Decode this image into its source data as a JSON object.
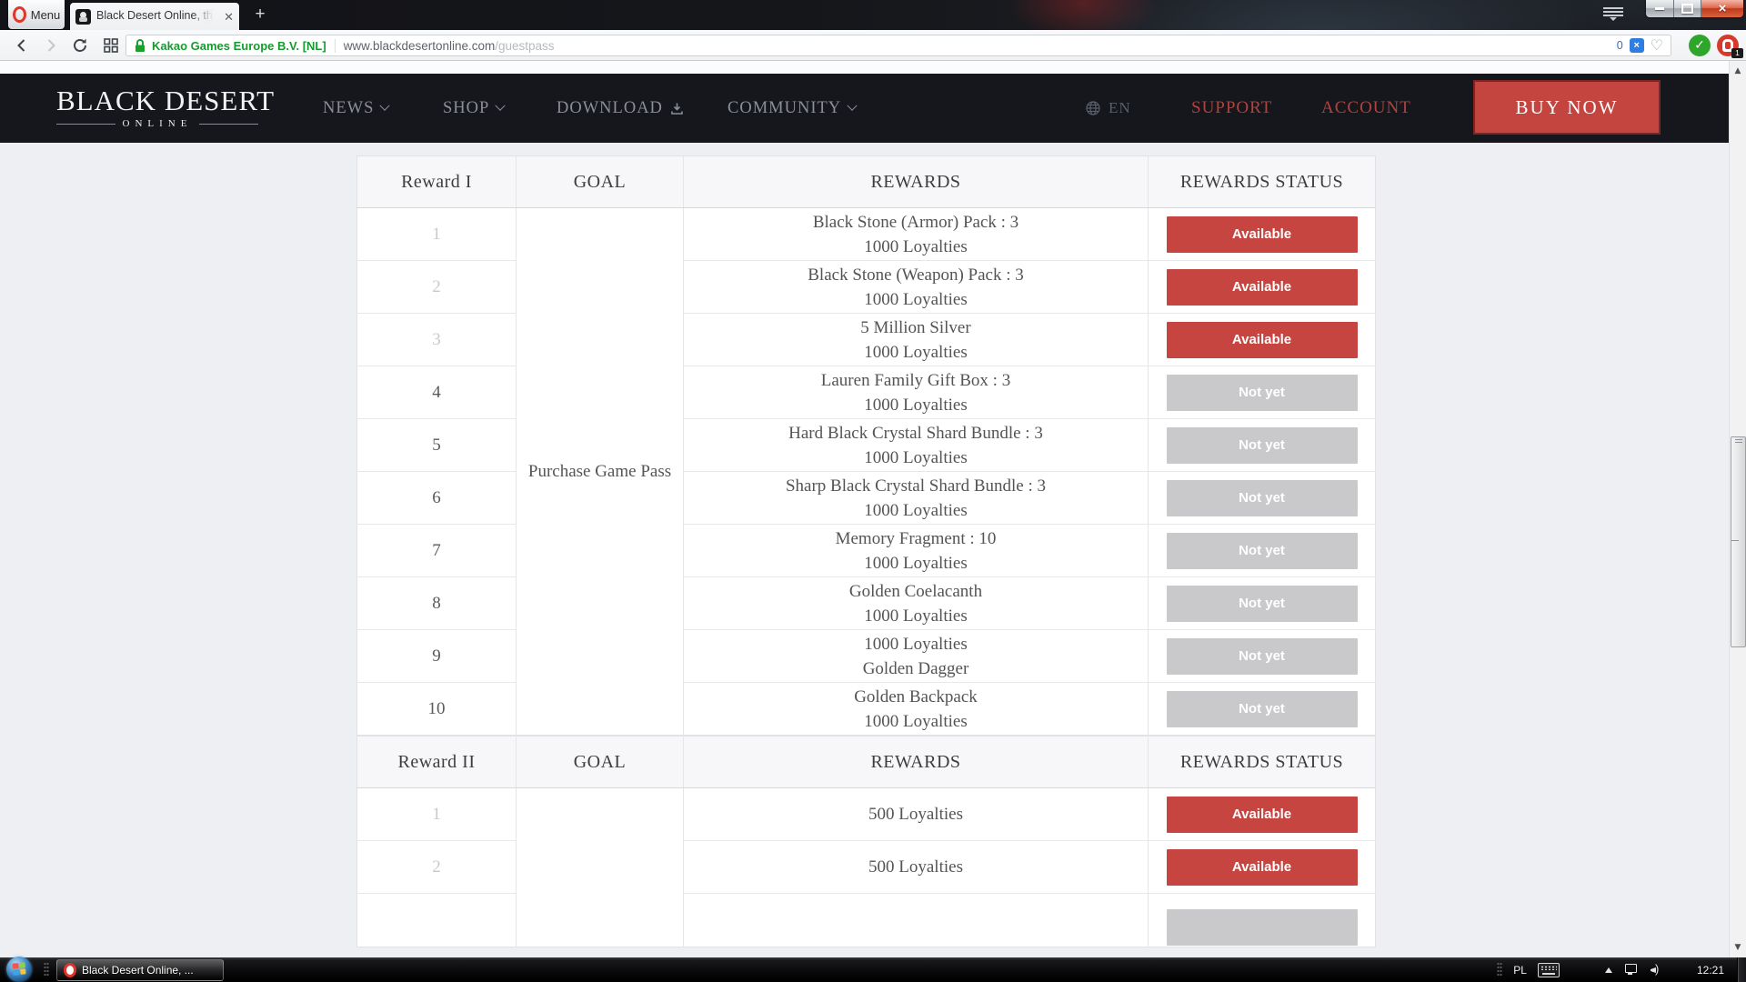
{
  "browser": {
    "menu_label": "Menu",
    "tab_title": "Black Desert Online, the ne",
    "new_tab_label": "+",
    "address": {
      "security": "Kakao Games Europe B.V. [NL]",
      "host": "www.blackdesertonline.com",
      "path": "/guestpass",
      "blocked_count": "0"
    },
    "extension_badge": "1"
  },
  "site": {
    "logo": {
      "line1": "BLACK DESERT",
      "line2": "ONLINE"
    },
    "nav": [
      {
        "label": "NEWS"
      },
      {
        "label": "SHOP"
      },
      {
        "label": "DOWNLOAD"
      },
      {
        "label": "COMMUNITY"
      }
    ],
    "lang": "EN",
    "support": "SUPPORT",
    "account": "ACCOUNT",
    "buy_now": "BUY NOW"
  },
  "tables": [
    {
      "headers": [
        "Reward I",
        "GOAL",
        "REWARDS",
        "REWARDS STATUS"
      ],
      "goal": "Purchase Game Pass",
      "rows": [
        {
          "num": "1",
          "lines": [
            "Black Stone (Armor) Pack : 3",
            "1000 Loyalties"
          ],
          "status": "Available",
          "available": true
        },
        {
          "num": "2",
          "lines": [
            "Black Stone (Weapon) Pack : 3",
            "1000 Loyalties"
          ],
          "status": "Available",
          "available": true
        },
        {
          "num": "3",
          "lines": [
            "5 Million Silver",
            "1000 Loyalties"
          ],
          "status": "Available",
          "available": true
        },
        {
          "num": "4",
          "lines": [
            "Lauren Family Gift Box : 3",
            "1000 Loyalties"
          ],
          "status": "Not yet",
          "available": false
        },
        {
          "num": "5",
          "lines": [
            "Hard Black Crystal Shard Bundle : 3",
            "1000 Loyalties"
          ],
          "status": "Not yet",
          "available": false
        },
        {
          "num": "6",
          "lines": [
            "Sharp Black Crystal Shard Bundle : 3",
            "1000 Loyalties"
          ],
          "status": "Not yet",
          "available": false
        },
        {
          "num": "7",
          "lines": [
            "Memory Fragment : 10",
            "1000 Loyalties"
          ],
          "status": "Not yet",
          "available": false
        },
        {
          "num": "8",
          "lines": [
            "Golden Coelacanth",
            "1000 Loyalties"
          ],
          "status": "Not yet",
          "available": false
        },
        {
          "num": "9",
          "lines": [
            "1000 Loyalties",
            "Golden Dagger"
          ],
          "status": "Not yet",
          "available": false
        },
        {
          "num": "10",
          "lines": [
            "Golden Backpack",
            "1000 Loyalties"
          ],
          "status": "Not yet",
          "available": false
        }
      ]
    },
    {
      "headers": [
        "Reward II",
        "GOAL",
        "REWARDS",
        "REWARDS STATUS"
      ],
      "goal": "",
      "rows": [
        {
          "num": "1",
          "lines": [
            "500 Loyalties"
          ],
          "status": "Available",
          "available": true
        },
        {
          "num": "2",
          "lines": [
            "500 Loyalties"
          ],
          "status": "Available",
          "available": true
        },
        {
          "num": "",
          "lines": [],
          "status": "",
          "available": false,
          "partial": true
        }
      ]
    }
  ],
  "taskbar": {
    "task_button": "Black Desert Online, ...",
    "tray_lang": "PL",
    "clock": "12:21"
  },
  "colors": {
    "accent_red": "#c4453f",
    "status_available": "#c64540",
    "status_not_yet": "#c9c9cb",
    "nav_dark": "#15171c",
    "security_green": "#159b2e"
  }
}
